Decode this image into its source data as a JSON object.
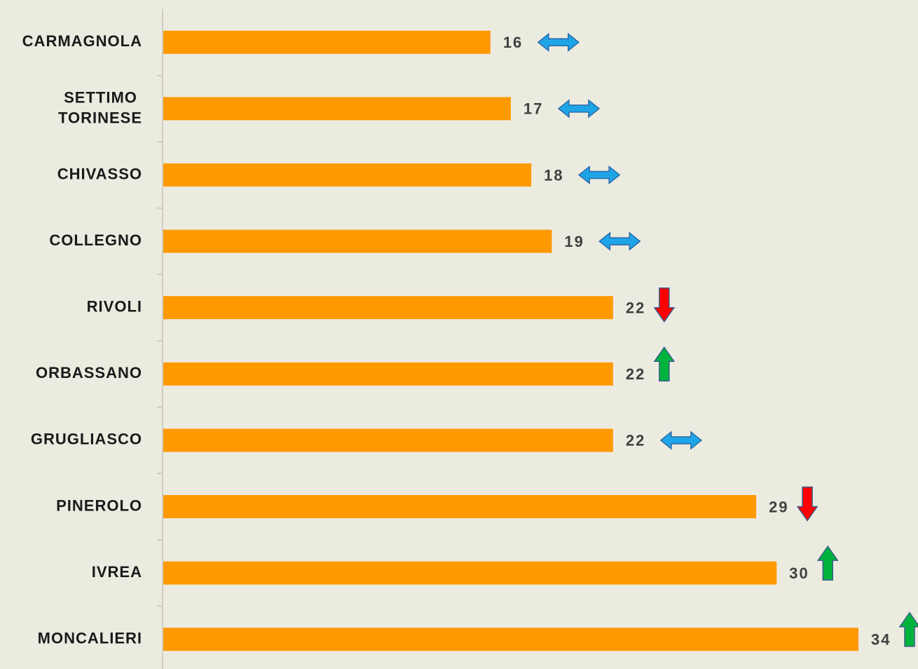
{
  "chart_data": {
    "type": "hbar",
    "categories": [
      "CARMAGNOLA",
      "SETTIMO TORINESE",
      "CHIVASSO",
      "COLLEGNO",
      "RIVOLI",
      "ORBASSANO",
      "GRUGLIASCO",
      "PINEROLO",
      "IVREA",
      "MONCALIERI"
    ],
    "values": [
      16,
      17,
      18,
      19,
      22,
      22,
      22,
      29,
      30,
      34
    ],
    "trends": [
      "flat",
      "flat",
      "flat",
      "flat",
      "down",
      "up",
      "flat",
      "down",
      "up",
      "up"
    ],
    "trend_colors": {
      "flat": "#1ea5e8",
      "up": "#00b33c",
      "down": "#ff0000"
    },
    "color": "#ff9900",
    "xlim": [
      0,
      34
    ]
  }
}
